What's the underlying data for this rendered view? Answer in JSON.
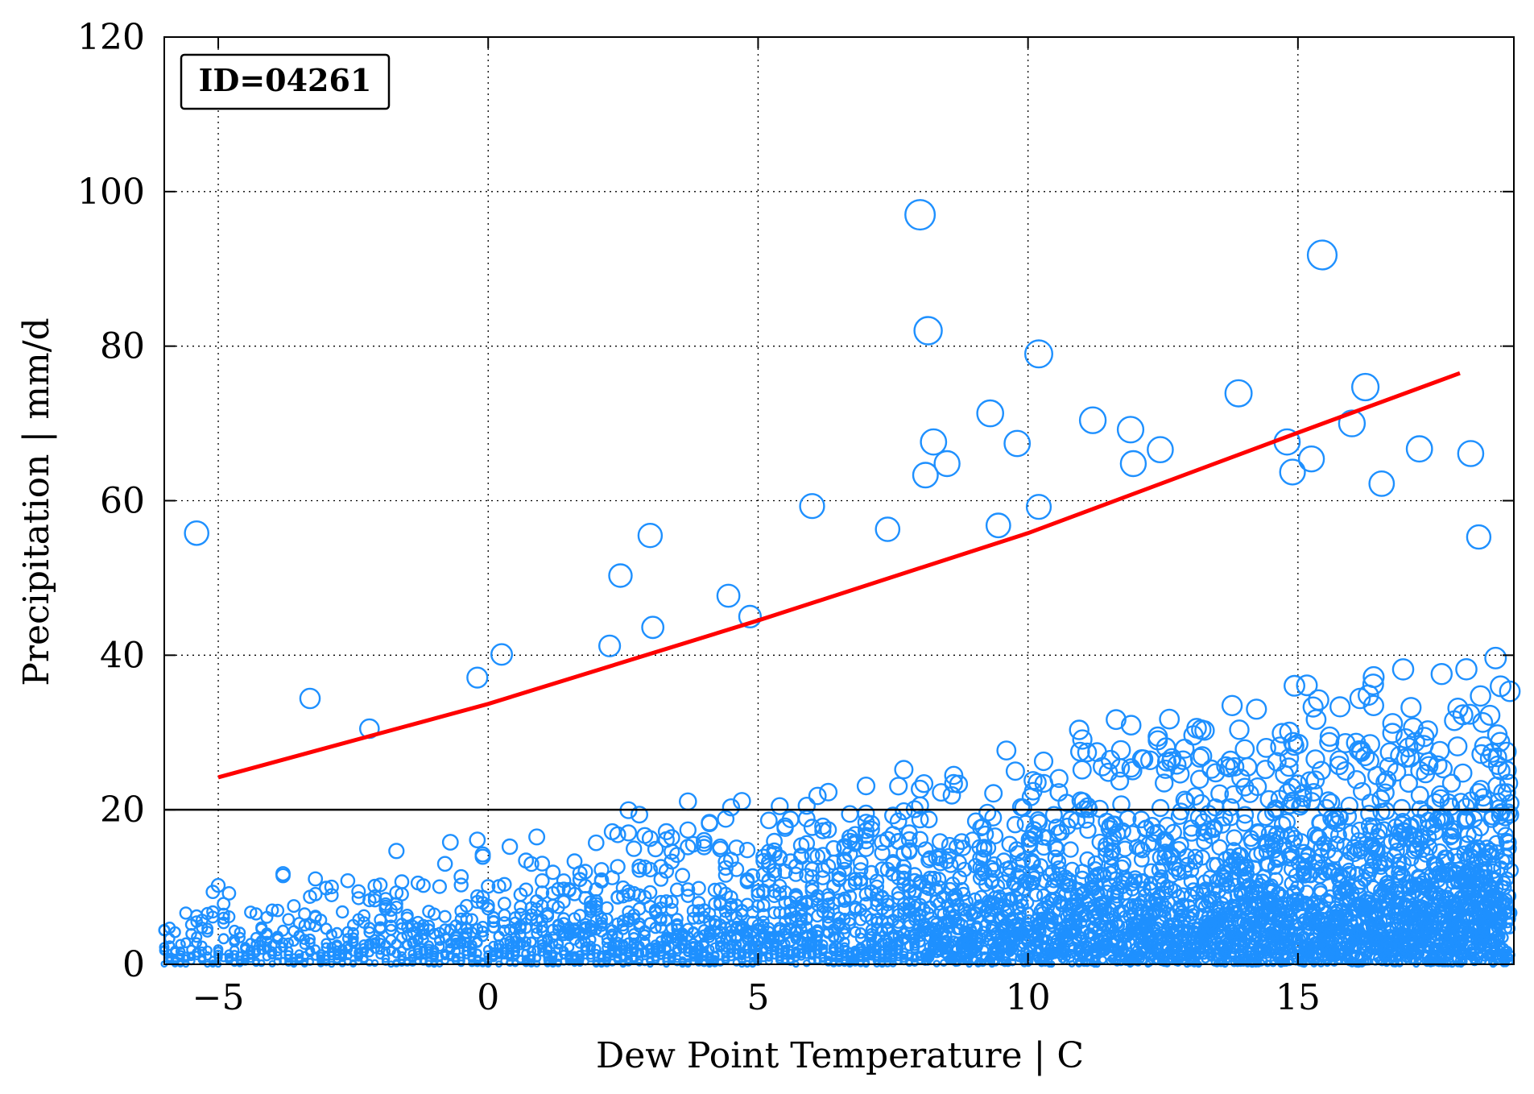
{
  "chart_data": {
    "type": "scatter",
    "title": "",
    "xlabel": "Dew Point Temperature | C",
    "ylabel": "Precipitation | mm/d",
    "xlim": [
      -6,
      19
    ],
    "ylim": [
      0,
      120
    ],
    "xticks": [
      -5,
      0,
      5,
      10,
      15
    ],
    "xtick_labels": [
      "−5",
      "0",
      "5",
      "10",
      "15"
    ],
    "yticks": [
      0,
      20,
      40,
      60,
      80,
      100,
      120
    ],
    "ytick_labels": [
      "0",
      "20",
      "40",
      "60",
      "80",
      "100",
      "120"
    ],
    "grid": true,
    "grid_style": "dotted",
    "marker_color": "#1e90ff",
    "marker_fill": "none",
    "marker_size_scales_with_y": true,
    "annotation": "ID=04261",
    "annotation_position": "top-left",
    "threshold_line": {
      "y": 20,
      "color": "#000000"
    },
    "fit_line": {
      "color": "#ff0000",
      "x": [
        -5,
        0,
        5,
        10,
        15,
        18
      ],
      "y": [
        24.2,
        33.7,
        44.5,
        55.8,
        68.8,
        76.5
      ]
    },
    "highlight_points": {
      "x": [
        -5.4,
        -3.3,
        -2.2,
        -0.2,
        0.25,
        2.25,
        2.45,
        3.0,
        3.05,
        4.45,
        4.85,
        6.0,
        7.4,
        8.0,
        8.1,
        8.15,
        8.25,
        8.5,
        9.3,
        9.45,
        9.8,
        10.2,
        10.2,
        11.2,
        11.9,
        11.95,
        12.45,
        13.9,
        14.8,
        14.9,
        15.25,
        15.45,
        16.0,
        16.25,
        16.55,
        17.25,
        18.2,
        18.35
      ],
      "y": [
        55.8,
        34.4,
        30.5,
        37.1,
        40.1,
        41.2,
        50.3,
        55.5,
        43.6,
        47.7,
        45.0,
        59.3,
        56.3,
        97.0,
        63.3,
        82.0,
        67.6,
        64.8,
        71.3,
        56.8,
        67.4,
        79.0,
        59.2,
        70.4,
        69.2,
        64.8,
        66.6,
        73.9,
        67.6,
        63.7,
        65.4,
        91.8,
        70.0,
        74.7,
        62.2,
        66.7,
        66.1,
        55.3
      ]
    }
  }
}
